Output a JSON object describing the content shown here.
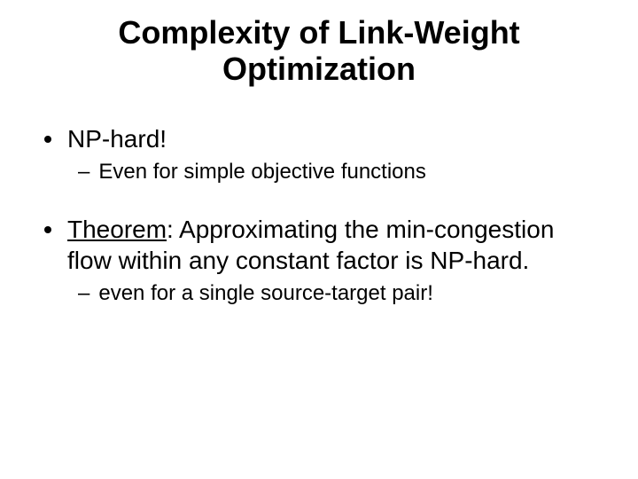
{
  "title_line1": "Complexity of Link-Weight",
  "title_line2": "Optimization",
  "bullets": {
    "b1": {
      "text": "NP-hard!",
      "sub": "Even for simple objective functions"
    },
    "b2": {
      "prefix": "Theorem",
      "rest": ": Approximating the min-congestion flow within any constant factor is NP-hard.",
      "sub": "even for a single source-target pair!"
    }
  },
  "colors": {
    "background": "#ffffff",
    "text": "#000000",
    "bullet_dot": "#000000"
  },
  "fonts": {
    "family": "Comic Sans MS",
    "title_size_pt": 36,
    "l1_size_pt": 28,
    "l2_size_pt": 24
  }
}
